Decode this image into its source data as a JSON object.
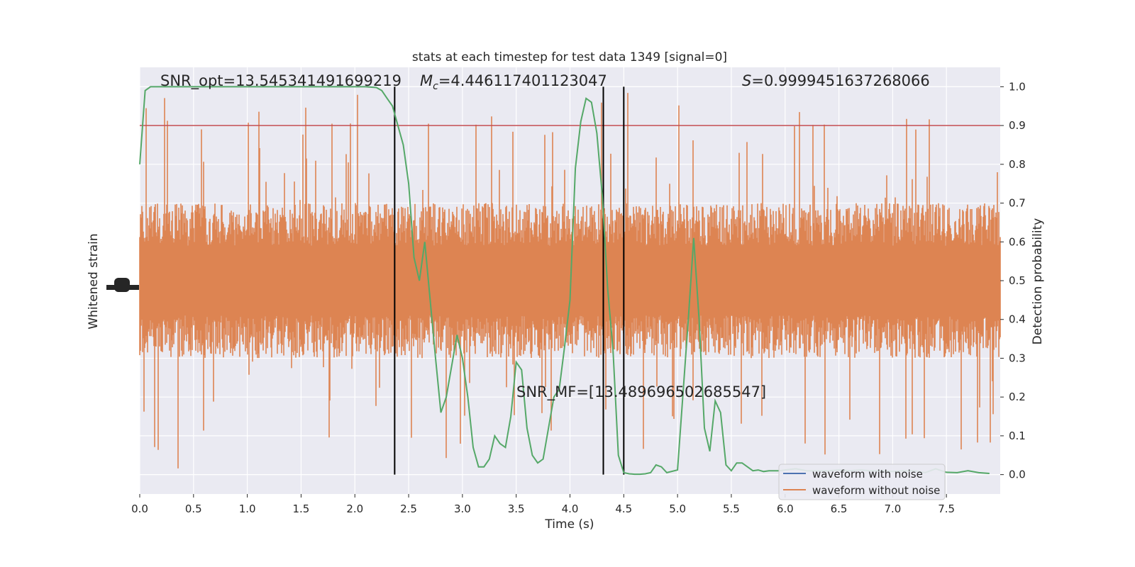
{
  "chart_data": {
    "type": "line",
    "title": "stats at each timestep for test data 1349 [signal=0]",
    "xlabel": "Time (s)",
    "ylabel_left": "Whitened strain",
    "ylabel_right": "Detection probability",
    "xlim": [
      0,
      8
    ],
    "ylim_right": [
      -0.05,
      1.05
    ],
    "x_ticks": [
      "0.0",
      "0.5",
      "1.0",
      "1.5",
      "2.0",
      "2.5",
      "3.0",
      "3.5",
      "4.0",
      "4.5",
      "5.0",
      "5.5",
      "6.0",
      "6.5",
      "7.0",
      "7.5"
    ],
    "y_ticks_right": [
      "0.0",
      "0.1",
      "0.2",
      "0.3",
      "0.4",
      "0.5",
      "0.6",
      "0.7",
      "0.8",
      "0.9",
      "1.0"
    ],
    "grid": true,
    "background": "#eaeaf2",
    "annotations": {
      "snr_opt": "SNR_opt=13.545341491699219",
      "mc_symbol": "M",
      "mc_sub": "c",
      "mc_value": "=4.446117401123047",
      "s_symbol": "S",
      "s_value": "=0.9999451637268066",
      "snr_mf": "SNR_MF=[13.489696502685547]"
    },
    "threshold": {
      "value": 0.9,
      "color": "#c44e52"
    },
    "vertical_lines_x": [
      2.37,
      4.31,
      4.5
    ],
    "legend": {
      "location": "lower-right",
      "entries": [
        {
          "label": "waveform with noise",
          "color": "#4c72b0"
        },
        {
          "label": "waveform without noise",
          "color": "#dd8452"
        }
      ]
    },
    "series": [
      {
        "color": "#dd8452",
        "kind": "noise-band",
        "center": 0.5,
        "typical_half_range": 0.2,
        "max_spike": 0.5
      },
      {
        "color": "#55a868",
        "x": [
          0,
          0.05,
          0.1,
          0.2,
          0.4,
          0.6,
          0.8,
          1.0,
          1.2,
          1.4,
          1.6,
          1.8,
          2.0,
          2.1,
          2.2,
          2.25,
          2.3,
          2.35,
          2.4,
          2.45,
          2.5,
          2.55,
          2.6,
          2.65,
          2.7,
          2.75,
          2.8,
          2.85,
          2.9,
          2.95,
          3.0,
          3.05,
          3.1,
          3.15,
          3.2,
          3.25,
          3.3,
          3.35,
          3.4,
          3.45,
          3.5,
          3.55,
          3.6,
          3.65,
          3.7,
          3.75,
          3.8,
          3.85,
          3.9,
          3.95,
          4.0,
          4.05,
          4.1,
          4.15,
          4.2,
          4.25,
          4.3,
          4.35,
          4.4,
          4.45,
          4.5,
          4.55,
          4.6,
          4.65,
          4.7,
          4.75,
          4.8,
          4.85,
          4.9,
          5.0,
          5.1,
          5.15,
          5.2,
          5.25,
          5.3,
          5.35,
          5.4,
          5.45,
          5.5,
          5.55,
          5.6,
          5.65,
          5.7,
          5.75,
          5.8,
          5.85,
          5.9,
          5.95,
          6.0,
          6.1,
          6.2,
          6.3,
          6.4,
          6.5,
          6.6,
          6.7,
          6.8,
          6.9,
          7.0,
          7.1,
          7.2,
          7.3,
          7.4,
          7.5,
          7.6,
          7.7,
          7.8,
          7.9
        ],
        "y": [
          0.8,
          0.99,
          1.0,
          1.0,
          1.0,
          1.0,
          1.0,
          1.0,
          1.0,
          1.0,
          1.0,
          1.0,
          1.0,
          1.0,
          0.998,
          0.99,
          0.97,
          0.95,
          0.9,
          0.85,
          0.75,
          0.56,
          0.5,
          0.6,
          0.45,
          0.3,
          0.16,
          0.2,
          0.28,
          0.36,
          0.3,
          0.2,
          0.07,
          0.02,
          0.02,
          0.04,
          0.1,
          0.08,
          0.07,
          0.15,
          0.29,
          0.27,
          0.12,
          0.05,
          0.03,
          0.04,
          0.12,
          0.2,
          0.22,
          0.33,
          0.45,
          0.79,
          0.91,
          0.97,
          0.96,
          0.88,
          0.72,
          0.48,
          0.32,
          0.05,
          0.005,
          0.002,
          0.001,
          0.001,
          0.002,
          0.005,
          0.025,
          0.02,
          0.005,
          0.012,
          0.4,
          0.61,
          0.4,
          0.12,
          0.06,
          0.19,
          0.16,
          0.025,
          0.01,
          0.03,
          0.03,
          0.02,
          0.01,
          0.012,
          0.008,
          0.01,
          0.01,
          0.01,
          0.012,
          0.015,
          0.01,
          0.01,
          0.01,
          0.012,
          0.01,
          0.012,
          0.01,
          0.01,
          0.008,
          0.01,
          0.01,
          0.005,
          0.015,
          0.006,
          0.005,
          0.01,
          0.005,
          0.003
        ]
      }
    ]
  }
}
